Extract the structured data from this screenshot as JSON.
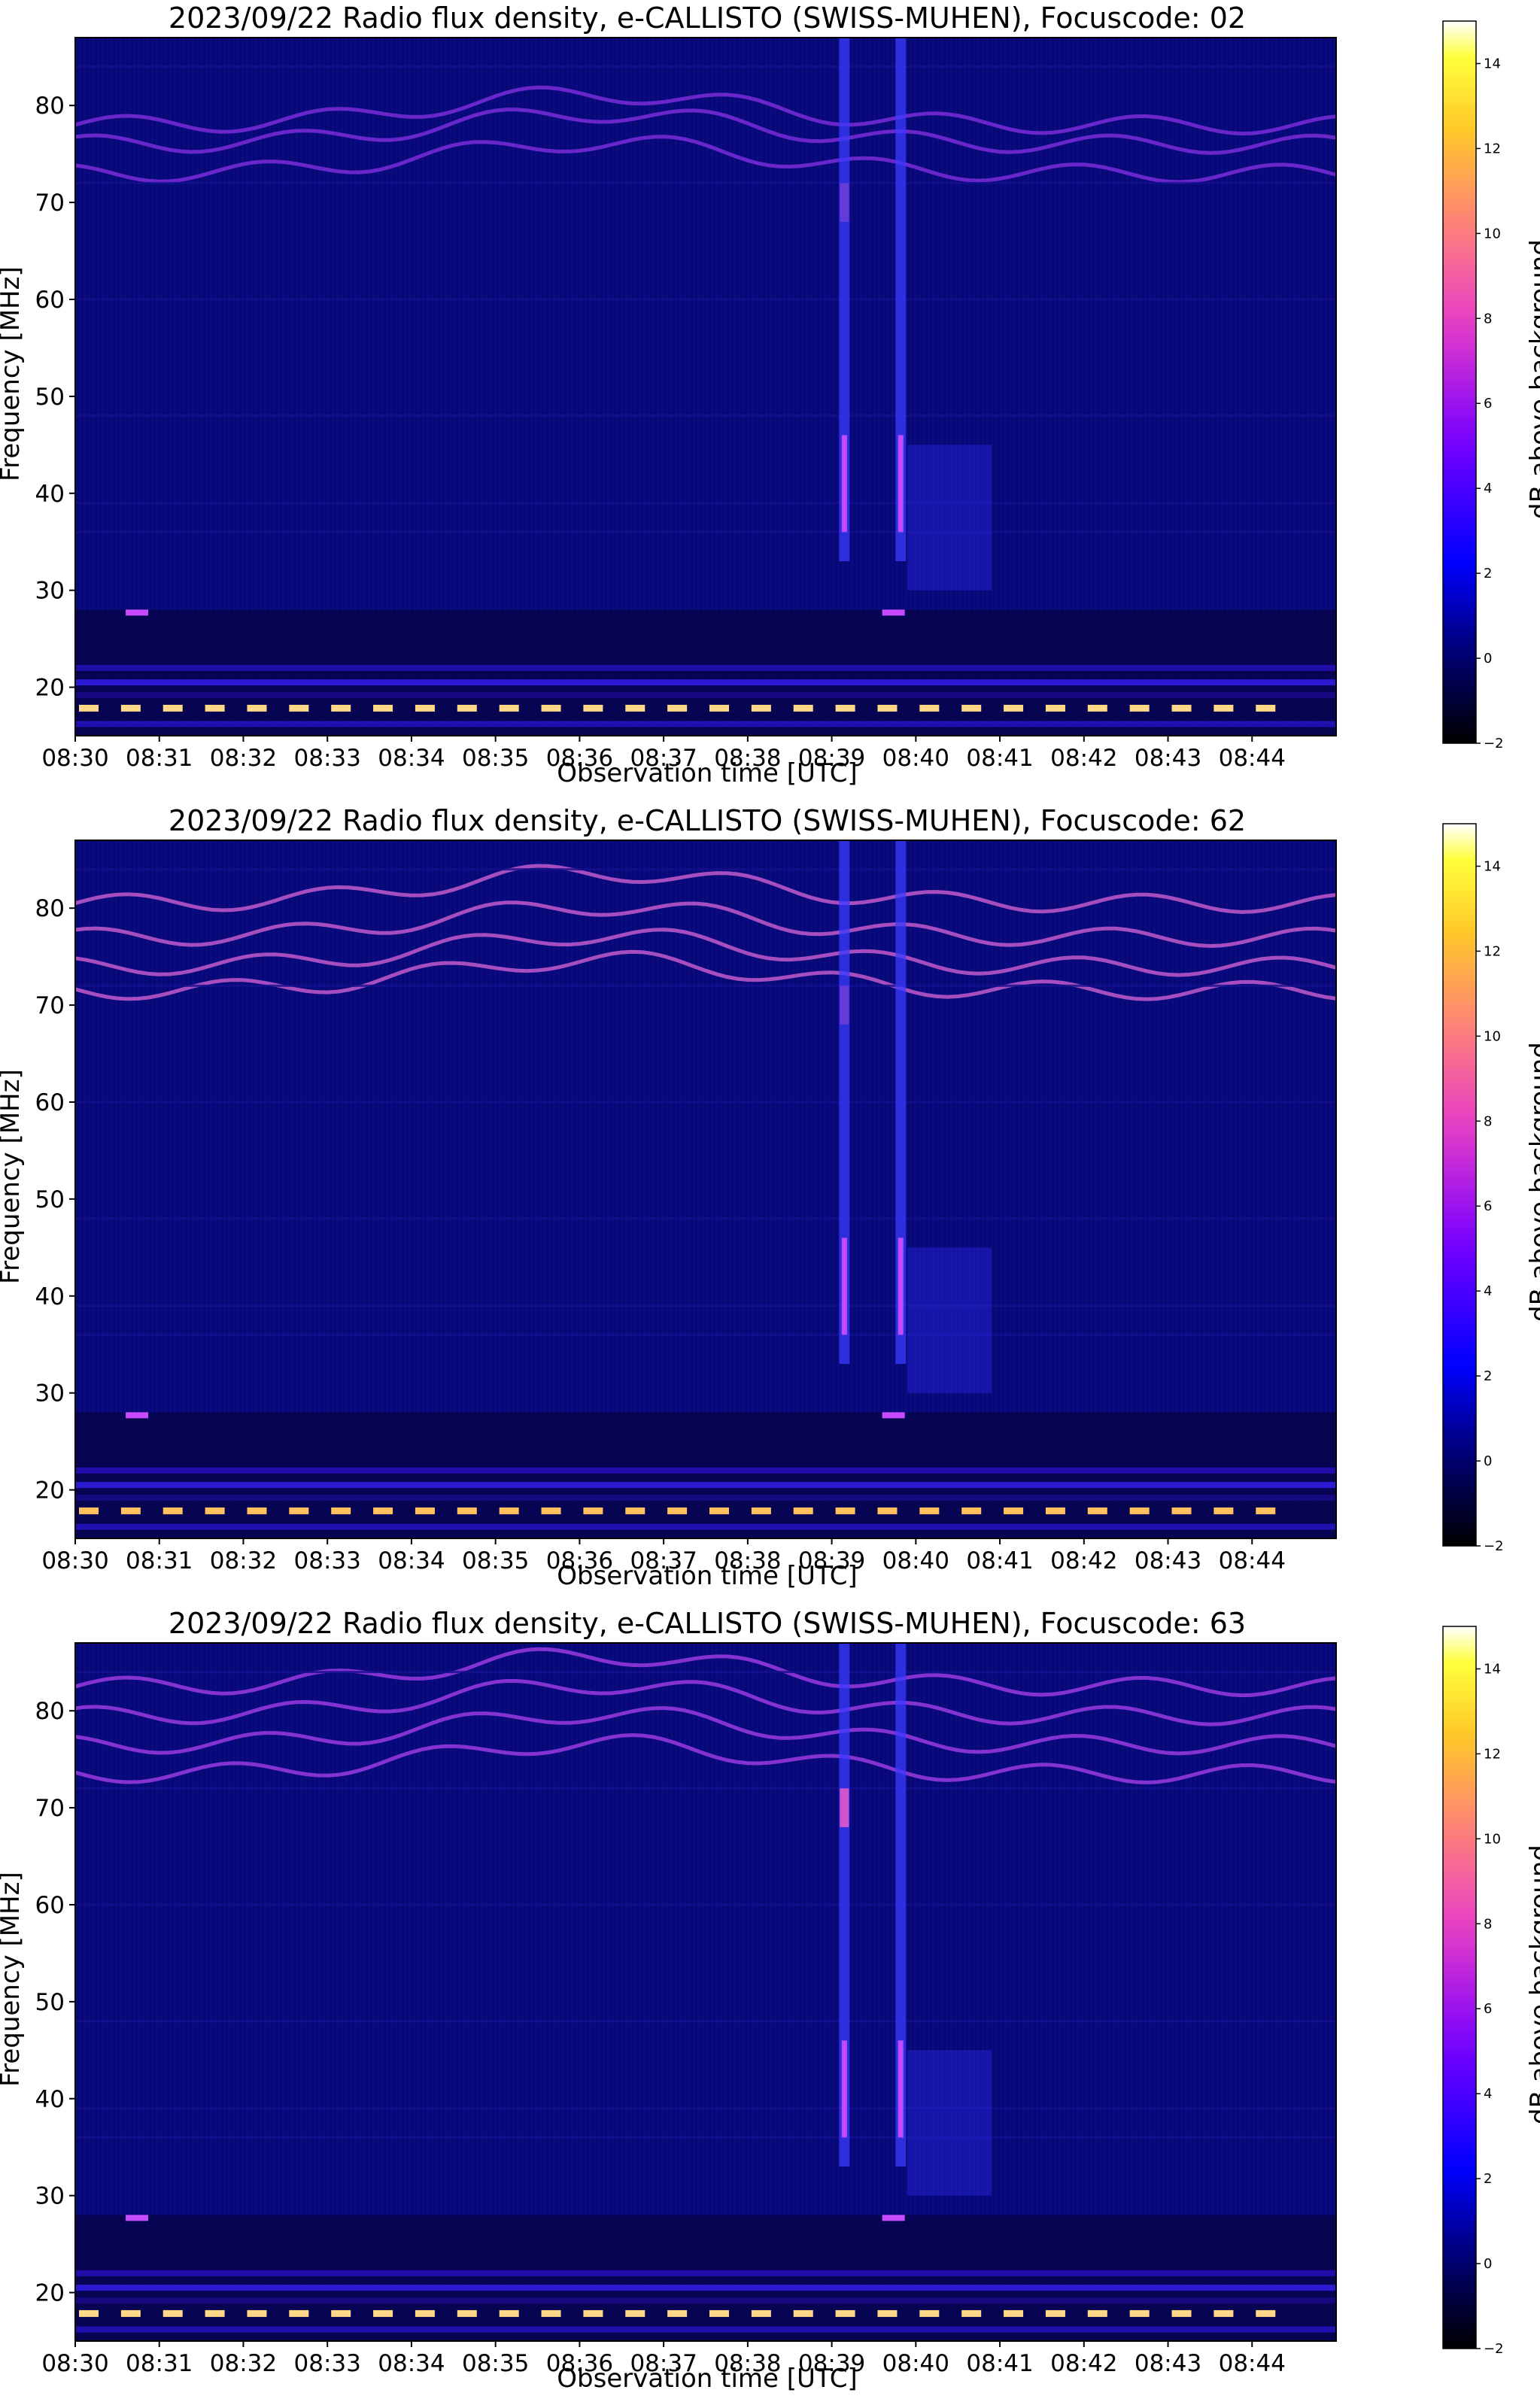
{
  "chart_data": [
    {
      "type": "heatmap",
      "title": "2023/09/22  Radio flux density, e-CALLISTO (SWISS-MUHEN), Focuscode: 02",
      "xlabel": "Observation time [UTC]",
      "ylabel": "Frequency [MHz]",
      "colorbar_label": "dB above background",
      "x_ticks": [
        "08:30",
        "08:31",
        "08:32",
        "08:33",
        "08:34",
        "08:35",
        "08:36",
        "08:37",
        "08:38",
        "08:39",
        "08:40",
        "08:41",
        "08:42",
        "08:43",
        "08:44"
      ],
      "xlim": [
        "08:30",
        "08:45"
      ],
      "y_ticks": [
        20,
        30,
        40,
        50,
        60,
        70,
        80
      ],
      "ylim": [
        15,
        87
      ],
      "colorbar_ticks": [
        -2,
        0,
        2,
        4,
        6,
        8,
        10,
        12,
        14
      ],
      "colorbar_range": [
        -2,
        15
      ],
      "colormap": "gnuplot2"
    },
    {
      "type": "heatmap",
      "title": "2023/09/22  Radio flux density, e-CALLISTO (SWISS-MUHEN), Focuscode: 62",
      "xlabel": "Observation time [UTC]",
      "ylabel": "Frequency [MHz]",
      "colorbar_label": "dB above background",
      "x_ticks": [
        "08:30",
        "08:31",
        "08:32",
        "08:33",
        "08:34",
        "08:35",
        "08:36",
        "08:37",
        "08:38",
        "08:39",
        "08:40",
        "08:41",
        "08:42",
        "08:43",
        "08:44"
      ],
      "xlim": [
        "08:30",
        "08:45"
      ],
      "y_ticks": [
        20,
        30,
        40,
        50,
        60,
        70,
        80
      ],
      "ylim": [
        15,
        87
      ],
      "colorbar_ticks": [
        -2,
        0,
        2,
        4,
        6,
        8,
        10,
        12,
        14
      ],
      "colorbar_range": [
        -2,
        15
      ],
      "colormap": "gnuplot2"
    },
    {
      "type": "heatmap",
      "title": "2023/09/22  Radio flux density, e-CALLISTO (SWISS-MUHEN), Focuscode: 63",
      "xlabel": "Observation time [UTC]",
      "ylabel": "Frequency [MHz]",
      "colorbar_label": "dB above background",
      "x_ticks": [
        "08:30",
        "08:31",
        "08:32",
        "08:33",
        "08:34",
        "08:35",
        "08:36",
        "08:37",
        "08:38",
        "08:39",
        "08:40",
        "08:41",
        "08:42",
        "08:43",
        "08:44"
      ],
      "xlim": [
        "08:30",
        "08:45"
      ],
      "y_ticks": [
        20,
        30,
        40,
        50,
        60,
        70,
        80
      ],
      "ylim": [
        15,
        87
      ],
      "colorbar_ticks": [
        -2,
        0,
        2,
        4,
        6,
        8,
        10,
        12,
        14
      ],
      "colorbar_range": [
        -2,
        15
      ],
      "colormap": "gnuplot2"
    }
  ]
}
